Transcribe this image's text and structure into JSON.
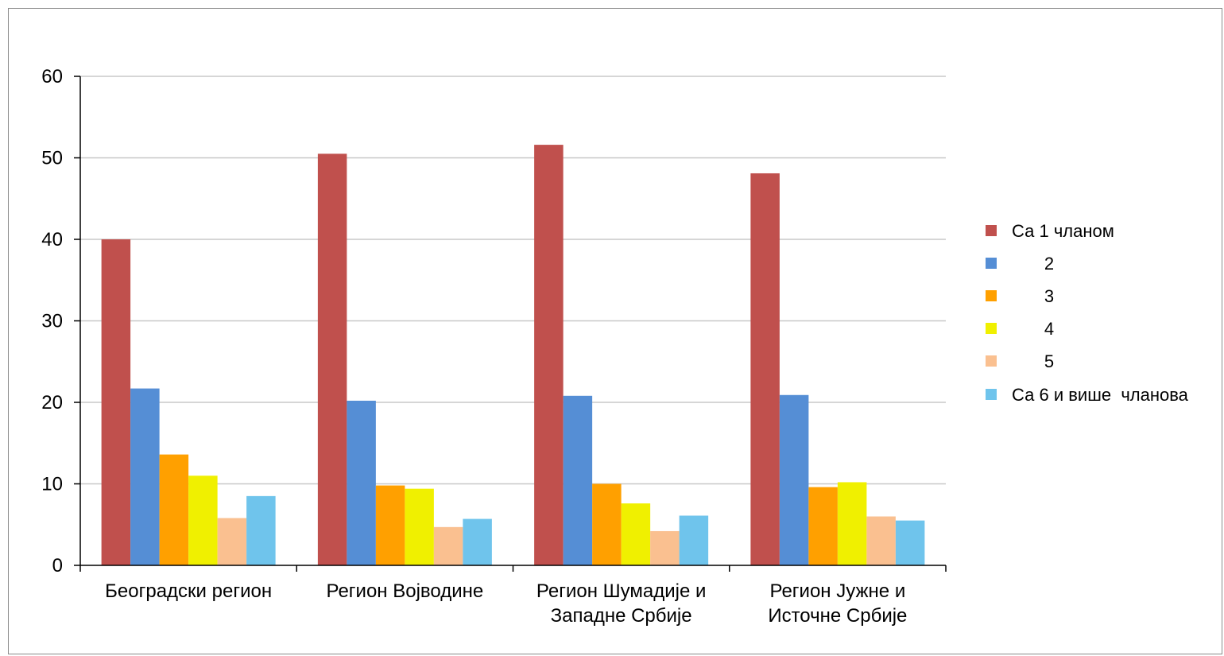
{
  "chart_data": {
    "type": "bar",
    "categories": [
      [
        "Београдски регион"
      ],
      [
        "Регион Војводине"
      ],
      [
        "Регион Шумадије и",
        "Западне Србије"
      ],
      [
        "Регион Јужне и",
        "Источне Србије"
      ]
    ],
    "series": [
      {
        "name": "Са 1 чланом",
        "color": "#c0504d",
        "values": [
          40.0,
          50.5,
          51.6,
          48.1
        ]
      },
      {
        "name": "2",
        "color": "#558ed5",
        "values": [
          21.7,
          20.2,
          20.8,
          20.9
        ]
      },
      {
        "name": "3",
        "color": "#ffa000",
        "values": [
          13.6,
          9.8,
          10.0,
          9.6
        ]
      },
      {
        "name": "4",
        "color": "#f0f000",
        "values": [
          11.0,
          9.4,
          7.6,
          10.2
        ]
      },
      {
        "name": "5",
        "color": "#fac090",
        "values": [
          5.8,
          4.7,
          4.2,
          6.0
        ]
      },
      {
        "name": "Са 6 и више  чланова",
        "color": "#6fc4ec",
        "values": [
          8.5,
          5.7,
          6.1,
          5.5
        ]
      }
    ],
    "ylim": [
      0,
      60
    ],
    "yticks": [
      "0",
      "10",
      "20",
      "30",
      "40",
      "50",
      "60"
    ],
    "grid": true,
    "legend_position": "right",
    "title": "",
    "xlabel": "",
    "ylabel": ""
  }
}
